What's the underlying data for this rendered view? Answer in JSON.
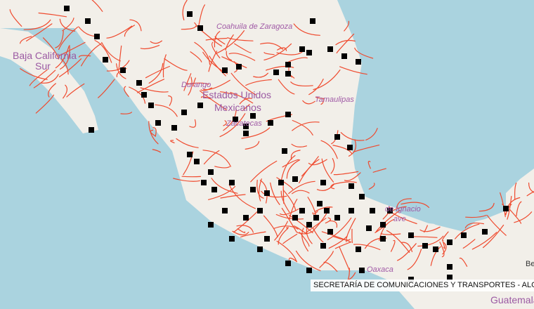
{
  "map": {
    "colors": {
      "water": "#aad3df",
      "land": "#f2efe9",
      "road": "#ef4a2e",
      "marker": "#000000"
    },
    "labels": {
      "baja_california_sur_1": "Baja California",
      "baja_california_sur_2": "Sur",
      "coahuila": "Coahuila de Zaragoza",
      "durango": "Durango",
      "mexico_1": "Estados Unidos",
      "mexico_2": "Mexicanos",
      "zacatecas": "Zacatecas",
      "tamaulipas": "Tamaulipas",
      "ignacio_1": "de Ignacio",
      "ignacio_2": "ave",
      "oaxaca": "Oaxaca",
      "guatemala": "Guatemala",
      "be": "Be"
    },
    "attribution": "SECRETARÍA DE COMUNICACIONES Y TRANSPORTES - ALC",
    "marker_icon": "filled-square"
  }
}
